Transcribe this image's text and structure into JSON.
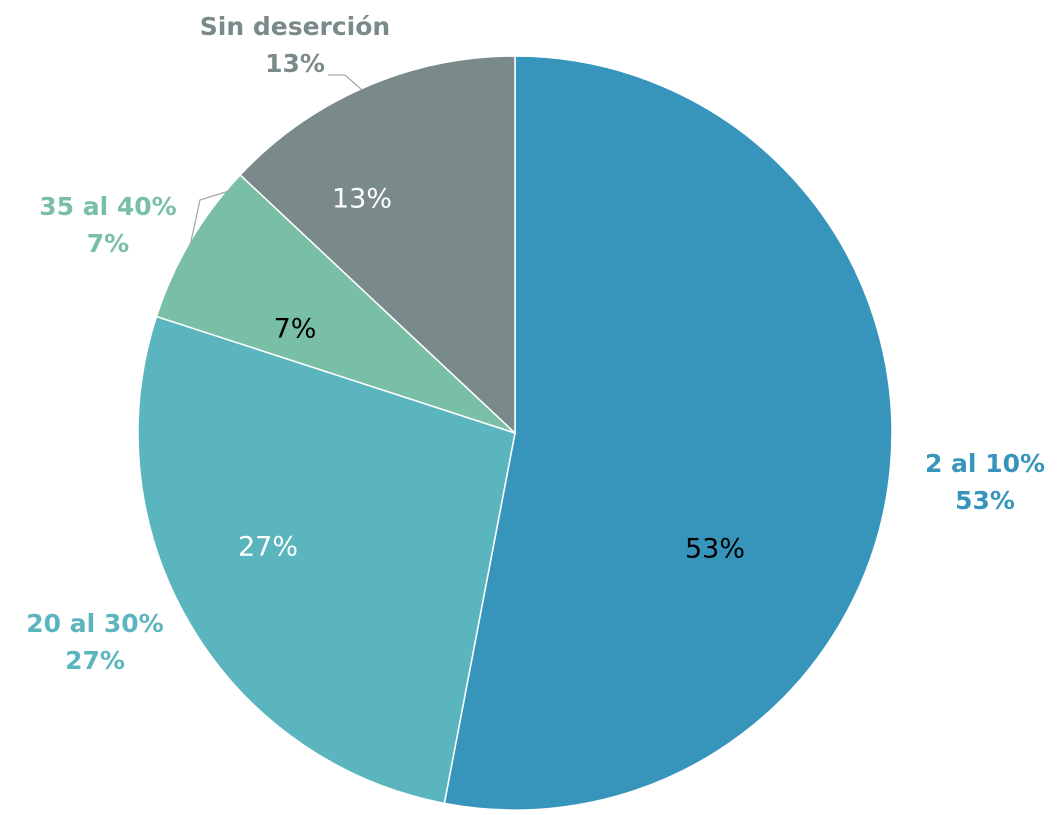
{
  "chart_data": {
    "type": "pie",
    "categories": [
      "2 al 10%",
      "20 al 30%",
      "35 al 40%",
      "Sin deserción"
    ],
    "values": [
      53,
      27,
      7,
      13
    ],
    "value_labels": [
      "53%",
      "27%",
      "7%",
      "13%"
    ],
    "colors": [
      "#3795bc",
      "#5bb5be",
      "#78bfa5",
      "#7a8a8a"
    ]
  }
}
